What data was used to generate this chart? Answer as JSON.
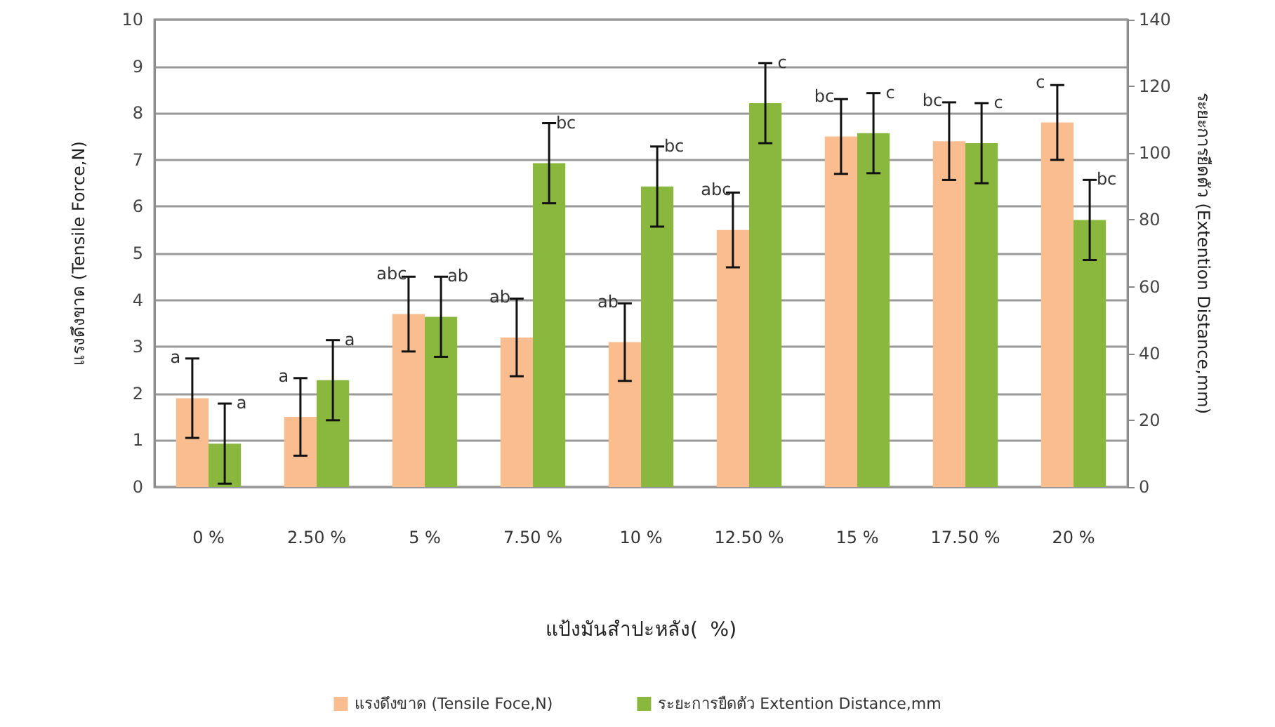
{
  "chart_data": {
    "type": "bar",
    "xlabel": "แป้งมันสำปะหลัง(  %)",
    "ylabel": "แรงดึงขาด (Tensile Force,N)",
    "y2label": "ระยะการยืดตัว (Extention Distance,mm)",
    "categories": [
      "0 %",
      "2.50 %",
      "5 %",
      "7.50 %",
      "10 %",
      "12.50 %",
      "15 %",
      "17.50 %",
      "20 %"
    ],
    "series": [
      {
        "name": "แรงดึงขาด (Tensile Foce,N)",
        "color": "#f9bd8f",
        "values": [
          1.9,
          1.5,
          3.7,
          3.2,
          3.1,
          5.5,
          7.5,
          7.4,
          7.8
        ],
        "errors": [
          0.85,
          0.83,
          0.8,
          0.83,
          0.83,
          0.8,
          0.8,
          0.83,
          0.8
        ],
        "value_labels": [
          "a",
          "a",
          "abc",
          "ab",
          "ab",
          "abc",
          "bc",
          "bc",
          "c"
        ]
      },
      {
        "name": "ระยะการยืดตัว Extention Distance,mm",
        "color": "#8ab83f",
        "axis": "y2",
        "values": [
          13,
          32,
          51,
          97,
          90,
          115,
          106,
          103,
          80
        ],
        "errors": [
          12,
          12,
          12,
          12,
          12,
          12,
          12,
          12,
          12
        ],
        "value_labels": [
          "a",
          "a",
          "ab",
          "bc",
          "bc",
          "c",
          "c",
          "c",
          "bc"
        ]
      }
    ],
    "ylim": [
      0,
      10
    ],
    "yticks": [
      0,
      1,
      2,
      3,
      4,
      5,
      6,
      7,
      8,
      9,
      10
    ],
    "y2lim": [
      0,
      140
    ],
    "y2ticks": [
      0,
      20,
      40,
      60,
      80,
      100,
      120,
      140
    ],
    "grid": "y",
    "legend": "bottom"
  }
}
